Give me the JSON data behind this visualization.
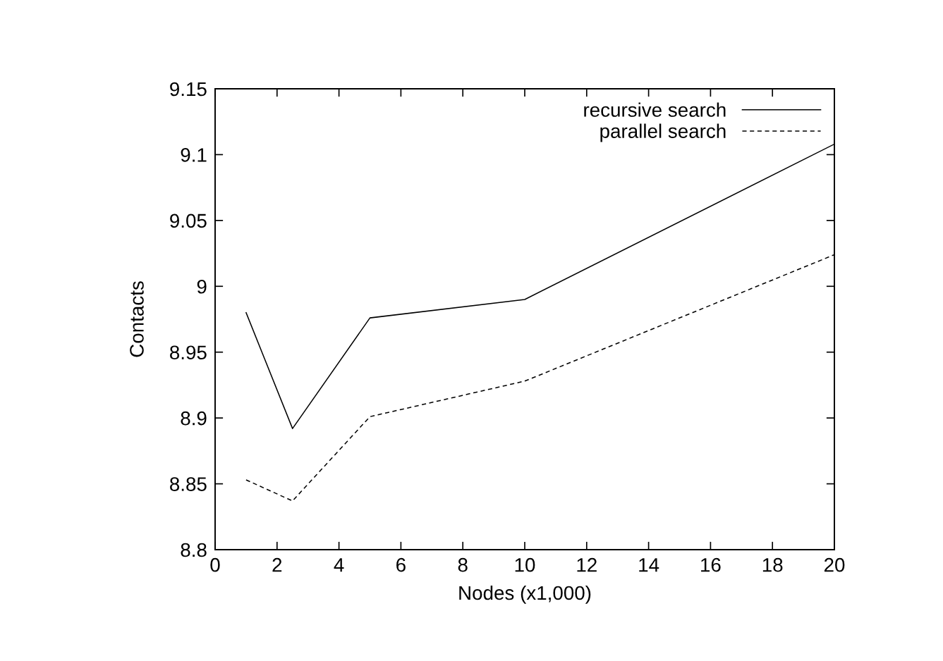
{
  "chart_data": {
    "type": "line",
    "xlabel": "Nodes (x1,000)",
    "ylabel": "Contacts",
    "x": [
      1,
      2.5,
      5,
      10,
      20
    ],
    "series": [
      {
        "name": "recursive search",
        "color": "#000000",
        "line_style": "solid",
        "values": [
          8.98,
          8.892,
          8.976,
          8.99,
          9.108
        ]
      },
      {
        "name": "parallel search",
        "color": "#000000",
        "line_style": "dashed",
        "values": [
          8.853,
          8.837,
          8.901,
          8.928,
          9.024
        ]
      }
    ],
    "xlim": [
      0,
      20
    ],
    "xticks": [
      0,
      2,
      4,
      6,
      8,
      10,
      12,
      14,
      16,
      18,
      20
    ],
    "ylim": [
      8.8,
      9.15
    ],
    "yticks": [
      {
        "value": 8.8,
        "label": "8.8"
      },
      {
        "value": 8.85,
        "label": "8.85"
      },
      {
        "value": 8.9,
        "label": "8.9"
      },
      {
        "value": 8.95,
        "label": "8.95"
      },
      {
        "value": 9.0,
        "label": "9"
      },
      {
        "value": 9.05,
        "label": "9.05"
      },
      {
        "value": 9.1,
        "label": "9.1"
      },
      {
        "value": 9.15,
        "label": "9.15"
      }
    ],
    "grid": false,
    "legend": "top right",
    "marker": "none"
  }
}
